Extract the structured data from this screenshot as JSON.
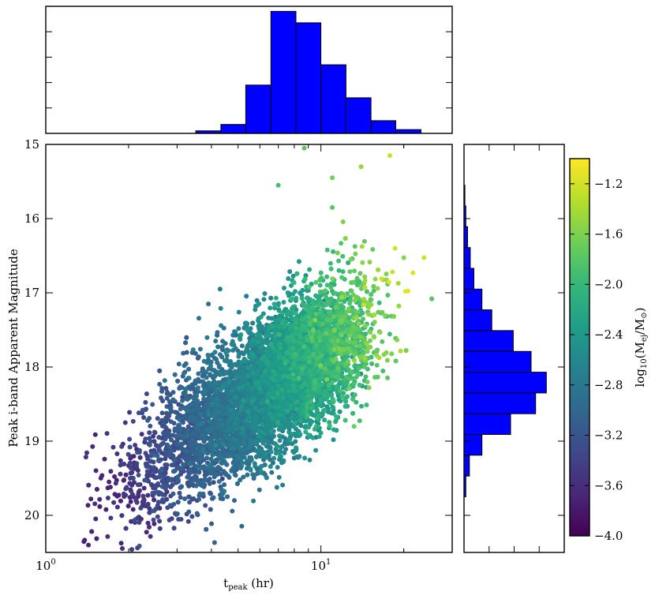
{
  "chart_data": [
    {
      "type": "scatter",
      "panel": "main",
      "xlabel": "t",
      "xlabel_sub": "peak",
      "xlabel_unit": " (hr)",
      "ylabel": "Peak i-band Apparent Magnitude",
      "xscale": "log",
      "xlim": [
        1,
        30
      ],
      "ylim": [
        20.5,
        15.0
      ],
      "y_inverted": true,
      "x_tick_labels": [
        {
          "value": 1,
          "base": "10",
          "exp": "0"
        },
        {
          "value": 10,
          "base": "10",
          "exp": "1"
        }
      ],
      "y_ticks": [
        15,
        16,
        17,
        18,
        19,
        20
      ],
      "y_tick_labels": [
        "15",
        "16",
        "17",
        "18",
        "19",
        "20"
      ],
      "color_by": "log10 ejecta mass",
      "colormap": [
        "#440154",
        "#482878",
        "#3e4989",
        "#31688e",
        "#26828e",
        "#1f9e89",
        "#35b779",
        "#6ece58",
        "#b5de2b",
        "#fde725"
      ],
      "point_cloud": {
        "count": 8000,
        "log10_mass_mean": -2.6,
        "log10_mass_sd": 0.42,
        "trend_points": [
          {
            "log10_mass": -3.6,
            "t_peak": 2.0,
            "mag": 19.6
          },
          {
            "log10_mass": -2.6,
            "t_peak": 7.0,
            "mag": 18.2
          },
          {
            "log10_mass": -1.4,
            "t_peak": 17.0,
            "mag": 17.1
          }
        ]
      },
      "outliers": [
        {
          "x": 1.68,
          "y": 19.63,
          "c": -3.7
        },
        {
          "x": 2.1,
          "y": 19.37,
          "c": -3.6
        },
        {
          "x": 2.35,
          "y": 19.73,
          "c": -3.6
        },
        {
          "x": 2.95,
          "y": 19.25,
          "c": -3.45
        },
        {
          "x": 3.3,
          "y": 19.22,
          "c": -3.4
        },
        {
          "x": 3.55,
          "y": 19.8,
          "c": -3.35
        },
        {
          "x": 3.45,
          "y": 18.55,
          "c": -3.2
        },
        {
          "x": 3.9,
          "y": 17.15,
          "c": -2.9
        },
        {
          "x": 4.3,
          "y": 16.95,
          "c": -2.8
        },
        {
          "x": 7.0,
          "y": 15.55,
          "c": -1.9
        },
        {
          "x": 8.7,
          "y": 15.05,
          "c": -1.8
        },
        {
          "x": 11.0,
          "y": 15.45,
          "c": -1.65
        },
        {
          "x": 14.0,
          "y": 15.3,
          "c": -1.5
        },
        {
          "x": 17.8,
          "y": 15.15,
          "c": -1.25
        },
        {
          "x": 18.6,
          "y": 16.4,
          "c": -1.2
        },
        {
          "x": 20.3,
          "y": 16.98,
          "c": -1.1
        },
        {
          "x": 13.2,
          "y": 18.8,
          "c": -1.7
        },
        {
          "x": 11.0,
          "y": 15.85,
          "c": -1.8
        }
      ]
    },
    {
      "type": "bar",
      "panel": "top-histogram",
      "orientation": "vertical",
      "xscale": "log",
      "bin_edges": [
        1.0,
        1.23,
        1.52,
        1.87,
        2.31,
        2.84,
        3.51,
        4.33,
        5.33,
        6.58,
        8.11,
        10.0,
        12.33,
        15.2,
        18.7,
        23.1
      ],
      "counts": [
        0,
        0,
        0,
        0,
        0,
        0,
        0.02,
        0.07,
        0.38,
        0.96,
        0.87,
        0.54,
        0.28,
        0.1,
        0.03
      ],
      "ylim": [
        0,
        1.0
      ]
    },
    {
      "type": "bar",
      "panel": "right-histogram",
      "orientation": "horizontal",
      "bin_edges": [
        15.55,
        15.83,
        16.11,
        16.39,
        16.67,
        16.95,
        17.23,
        17.51,
        17.79,
        18.07,
        18.35,
        18.63,
        18.91,
        19.19,
        19.47,
        19.75
      ],
      "counts": [
        0.01,
        0.02,
        0.04,
        0.07,
        0.11,
        0.2,
        0.31,
        0.55,
        0.75,
        0.92,
        0.8,
        0.52,
        0.2,
        0.06,
        0.02
      ],
      "xlim": [
        0,
        1.12
      ]
    },
    {
      "type": "colorbar",
      "panel": "colorbar",
      "label_text": "log",
      "label_sub": "10",
      "label_rest": "(M",
      "label_sub2": "ej",
      "label_end": "/M",
      "label_sun": "⊙",
      "label_close": ")",
      "range": [
        -4.0,
        -1.0
      ],
      "ticks": [
        -4.0,
        -3.6,
        -3.2,
        -2.8,
        -2.4,
        -2.0,
        -1.6,
        -1.2
      ],
      "tick_labels": [
        "−4.0",
        "−3.6",
        "−3.2",
        "−2.8",
        "−2.4",
        "−2.0",
        "−1.6",
        "−1.2"
      ]
    }
  ]
}
